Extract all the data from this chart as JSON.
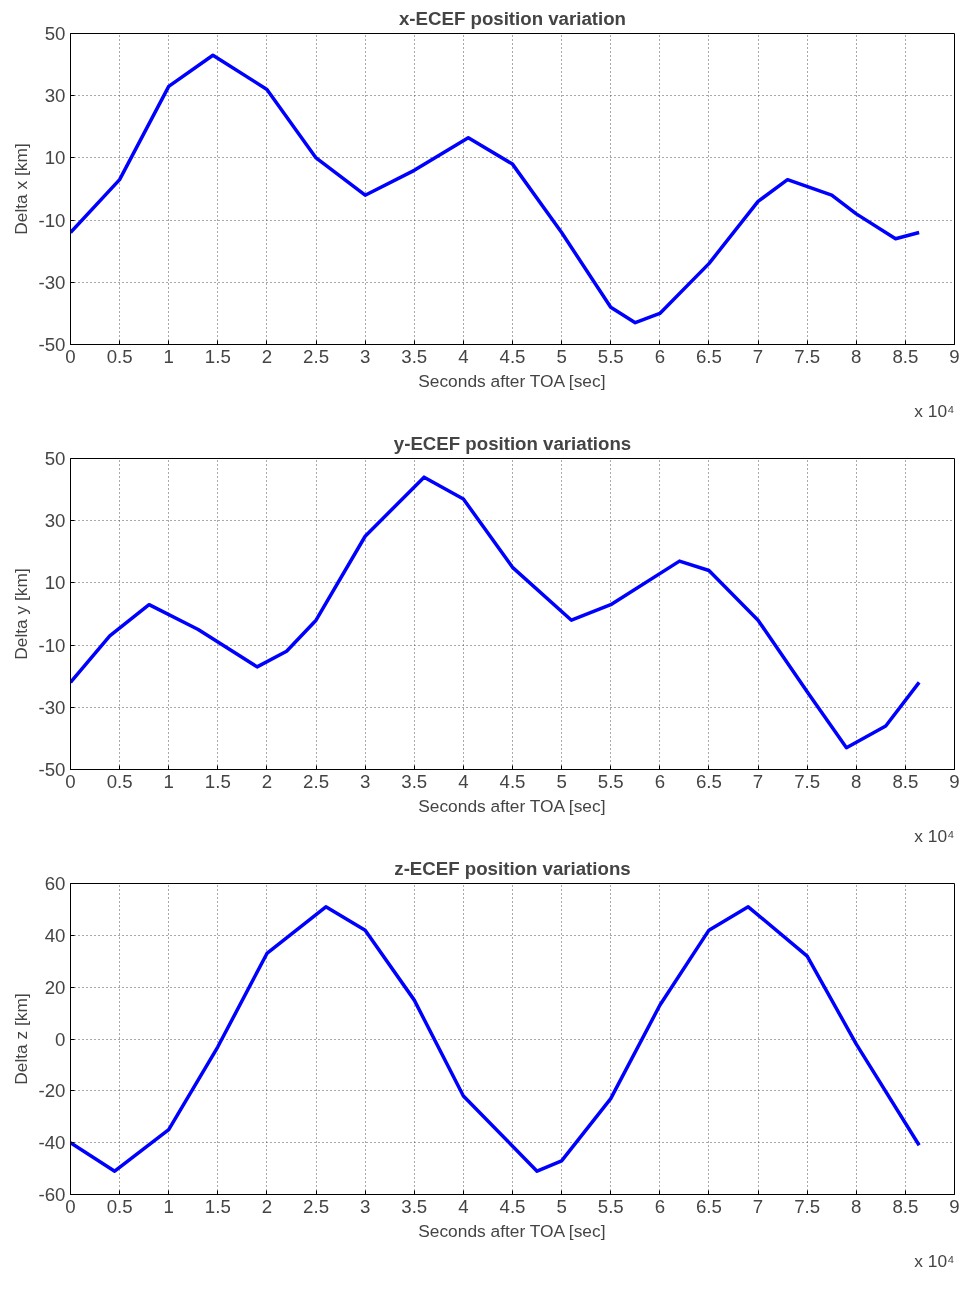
{
  "chart_data": [
    {
      "type": "line",
      "title": "x-ECEF position variation",
      "xlabel": "Seconds after TOA [sec]",
      "ylabel": "Delta x [km]",
      "annotations": [
        "x 10⁴"
      ],
      "x": [
        0,
        0.5,
        1.0,
        1.45,
        2.0,
        2.5,
        3.0,
        3.5,
        4.05,
        4.5,
        5.0,
        5.5,
        5.75,
        6.0,
        6.5,
        7.0,
        7.3,
        7.75,
        8.0,
        8.4,
        8.64
      ],
      "series": [
        {
          "color": "#0000ff",
          "values": [
            -14,
            3,
            33,
            43,
            32,
            10,
            -2,
            6,
            16.5,
            8,
            -14,
            -38,
            -43,
            -40,
            -24,
            -4,
            3,
            -2,
            -8,
            -16,
            -14
          ]
        }
      ],
      "xlim": [
        0,
        9
      ],
      "ylim": [
        -50,
        50
      ],
      "xticks": [
        0,
        0.5,
        1,
        1.5,
        2,
        2.5,
        3,
        3.5,
        4,
        4.5,
        5,
        5.5,
        6,
        6.5,
        7,
        7.5,
        8,
        8.5,
        9
      ],
      "yticks": [
        -50,
        -30,
        -10,
        10,
        30,
        50
      ],
      "grid": true,
      "line_style": "solid",
      "marker": "none"
    },
    {
      "type": "line",
      "title": "y-ECEF position variations",
      "xlabel": "Seconds after TOA [sec]",
      "ylabel": "Delta y [km]",
      "annotations": [
        "x 10⁴"
      ],
      "x": [
        0,
        0.4,
        0.8,
        1.3,
        1.9,
        2.2,
        2.5,
        3.0,
        3.6,
        4.0,
        4.5,
        5.1,
        5.5,
        6.2,
        6.5,
        7.0,
        7.5,
        7.9,
        8.3,
        8.64
      ],
      "series": [
        {
          "color": "#0000ff",
          "values": [
            -22,
            -7,
            3,
            -5,
            -17,
            -12,
            -2,
            25,
            44,
            37,
            15,
            -2,
            3,
            17,
            14,
            -2,
            -25,
            -43,
            -36,
            -22
          ]
        }
      ],
      "xlim": [
        0,
        9
      ],
      "ylim": [
        -50,
        50
      ],
      "xticks": [
        0,
        0.5,
        1,
        1.5,
        2,
        2.5,
        3,
        3.5,
        4,
        4.5,
        5,
        5.5,
        6,
        6.5,
        7,
        7.5,
        8,
        8.5,
        9
      ],
      "yticks": [
        -50,
        -30,
        -10,
        10,
        30,
        50
      ],
      "grid": true,
      "line_style": "solid",
      "marker": "none"
    },
    {
      "type": "line",
      "title": "z-ECEF position variations",
      "xlabel": "Seconds after TOA [sec]",
      "ylabel": "Delta z [km]",
      "annotations": [
        "x 10⁴"
      ],
      "x": [
        0,
        0.45,
        1.0,
        1.5,
        2.0,
        2.6,
        3.0,
        3.5,
        4.0,
        4.75,
        5.0,
        5.5,
        6.0,
        6.5,
        6.9,
        7.5,
        8.0,
        8.64
      ],
      "series": [
        {
          "color": "#0000ff",
          "values": [
            -40,
            -51,
            -35,
            -3,
            33,
            51,
            42,
            15,
            -22,
            -51,
            -47,
            -23,
            13,
            42,
            51,
            32,
            -2,
            -41
          ]
        }
      ],
      "xlim": [
        0,
        9
      ],
      "ylim": [
        -60,
        60
      ],
      "xticks": [
        0,
        0.5,
        1,
        1.5,
        2,
        2.5,
        3,
        3.5,
        4,
        4.5,
        5,
        5.5,
        6,
        6.5,
        7,
        7.5,
        8,
        8.5,
        9
      ],
      "yticks": [
        -60,
        -40,
        -20,
        0,
        20,
        40,
        60
      ],
      "grid": true,
      "line_style": "solid",
      "marker": "none"
    }
  ]
}
